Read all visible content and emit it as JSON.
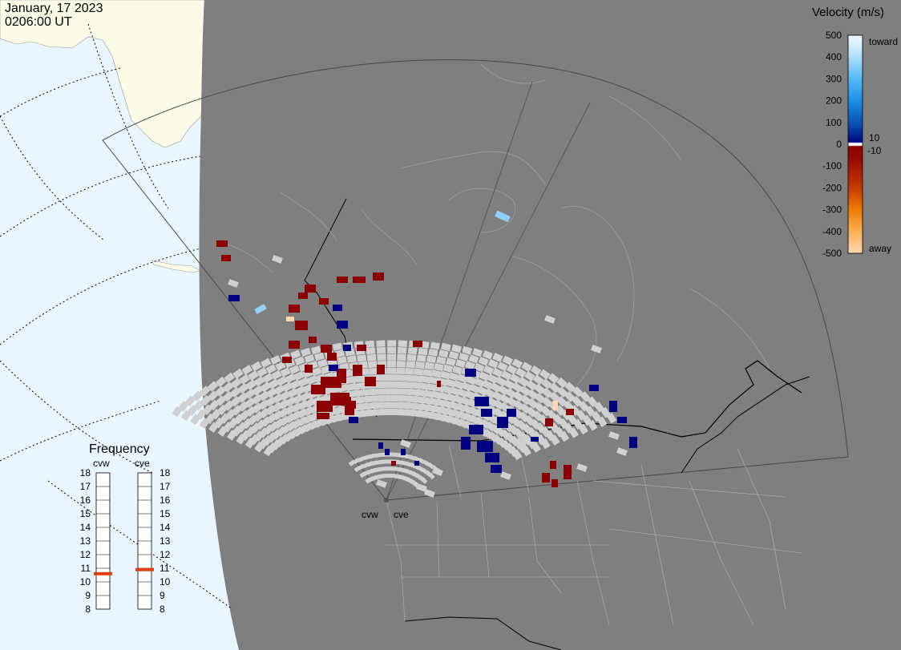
{
  "header": {
    "date": "January, 17 2023",
    "time": "0206:00 UT"
  },
  "colors": {
    "ocean": "#e9f6ff",
    "night_land": "#7f7f7f",
    "day_land": "#fbfbe6",
    "fov_outline": "#4a4a4a",
    "ground_scatter": "#d0d0d0",
    "away_color": "#8b0000",
    "toward_color": "#000080",
    "frequency_marker": "#e04010"
  },
  "velocity_scale": {
    "title": "Velocity (m/s)",
    "ticks": [
      "500",
      "400",
      "300",
      "200",
      "100",
      "0",
      "-100",
      "-200",
      "-300",
      "-400",
      "-500"
    ],
    "small_labels": [
      "10",
      "-10"
    ],
    "toward_label": "toward",
    "away_label": "away",
    "stops": [
      "#f2f9ff",
      "#bfe4fb",
      "#5bbef5",
      "#1c8fe6",
      "#0a55b6",
      "#001a8c",
      "#000080",
      "#ffffff",
      "#8b0000",
      "#9a0f00",
      "#c43a00",
      "#ec7b00",
      "#fcaf55",
      "#fdd8b0"
    ]
  },
  "radars": [
    {
      "code": "cvw"
    },
    {
      "code": "cve"
    }
  ],
  "frequency_panel": {
    "title": "Frequency",
    "labels": [
      "cvw",
      "cve"
    ],
    "ticks": [
      "18",
      "17",
      "16",
      "15",
      "14",
      "13",
      "12",
      "11",
      "10",
      "9",
      "8"
    ],
    "cvw_mhz": 10.6,
    "cve_mhz": 10.9
  },
  "map_features": [
    "coastlines",
    "state-boundaries",
    "province-boundaries",
    "lat-lon-grid",
    "terminator",
    "fov-cvw",
    "fov-cve"
  ]
}
